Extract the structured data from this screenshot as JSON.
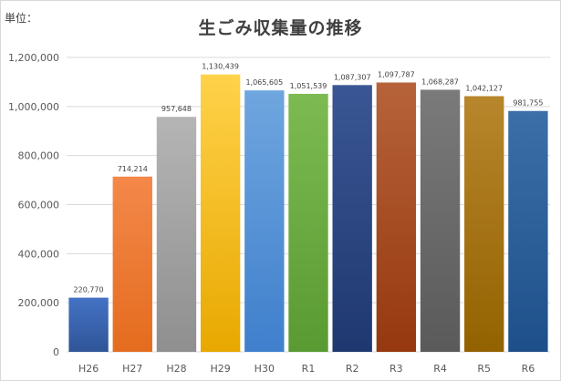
{
  "unit_label": "単位：",
  "chart_data": {
    "type": "bar",
    "title": "生ごみ収集量の推移",
    "xlabel": "",
    "ylabel": "",
    "categories": [
      "H26",
      "H27",
      "H28",
      "H29",
      "H30",
      "R1",
      "R2",
      "R3",
      "R4",
      "R5",
      "R6"
    ],
    "values": [
      220770,
      714214,
      957648,
      1130439,
      1065605,
      1051539,
      1087307,
      1097787,
      1068287,
      1042127,
      981755
    ],
    "data_labels": [
      "220,770",
      "714,214",
      "957,648",
      "1,130,439",
      "1,065,605",
      "1,051,539",
      "1,087,307",
      "1,097,787",
      "1,068,287",
      "1,042,127",
      "981,755"
    ],
    "ylim": [
      0,
      1200000
    ],
    "y_ticks": [
      0,
      200000,
      400000,
      600000,
      800000,
      1000000,
      1200000
    ],
    "y_tick_labels": [
      "0",
      "200,000",
      "400,000",
      "600,000",
      "800,000",
      "1,000,000",
      "1,200,000"
    ],
    "grid": true,
    "legend": "none",
    "colors": [
      [
        "#4472c4",
        "#2f5597"
      ],
      [
        "#f4884a",
        "#e46c1e"
      ],
      [
        "#b5b5b5",
        "#8f8f8f"
      ],
      [
        "#ffd24a",
        "#e8a800"
      ],
      [
        "#6fa6df",
        "#3f7fcc"
      ],
      [
        "#7dba52",
        "#5a9a32"
      ],
      [
        "#3a5694",
        "#1f3870"
      ],
      [
        "#b7633a",
        "#96380f"
      ],
      [
        "#7a7a7a",
        "#5a5a5a"
      ],
      [
        "#b8862c",
        "#936200"
      ],
      [
        "#3c6fa8",
        "#1e4f8a"
      ]
    ]
  }
}
